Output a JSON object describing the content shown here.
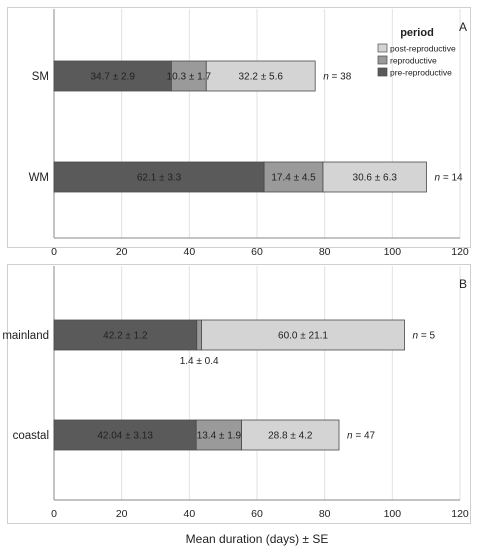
{
  "chart_data": [
    {
      "type": "bar",
      "panel_label": "A",
      "orientation": "horizontal",
      "stacked": true,
      "categories": [
        "SM",
        "WM"
      ],
      "series": [
        {
          "name": "pre-reproductive",
          "color": "#5a5a5a",
          "values": [
            34.7,
            62.1
          ],
          "labels": [
            "34.7 ± 2.9",
            "62.1 ± 3.3"
          ]
        },
        {
          "name": "reproductive",
          "color": "#9a9a9a",
          "values": [
            10.3,
            17.4
          ],
          "labels": [
            "10.3 ± 1.7",
            "17.4 ± 4.5"
          ]
        },
        {
          "name": "post-reproductive",
          "color": "#d4d4d4",
          "values": [
            32.2,
            30.6
          ],
          "labels": [
            "32.2 ± 5.6",
            "30.6 ± 6.3"
          ]
        }
      ],
      "n_labels": [
        "n = 38",
        "n = 14"
      ],
      "xlim": [
        0,
        120
      ],
      "xticks": [
        0,
        20,
        40,
        60,
        80,
        100,
        120
      ],
      "grid": true,
      "legend_title": "period",
      "legend_position": "top-right"
    },
    {
      "type": "bar",
      "panel_label": "B",
      "orientation": "horizontal",
      "stacked": true,
      "categories": [
        "mainland",
        "coastal"
      ],
      "series": [
        {
          "name": "pre-reproductive",
          "color": "#5a5a5a",
          "values": [
            42.2,
            42.04
          ],
          "labels": [
            "42.2 ± 1.2",
            "42.04 ± 3.13"
          ]
        },
        {
          "name": "reproductive",
          "color": "#9a9a9a",
          "values": [
            1.4,
            13.4
          ],
          "labels": [
            "1.4 ± 0.4",
            "13.4 ± 1.9"
          ]
        },
        {
          "name": "post-reproductive",
          "color": "#d4d4d4",
          "values": [
            60.0,
            28.8
          ],
          "labels": [
            "60.0 ± 21.1",
            "28.8 ± 4.2"
          ]
        }
      ],
      "n_labels": [
        "n = 5",
        "n = 47"
      ],
      "xlim": [
        0,
        120
      ],
      "xticks": [
        0,
        20,
        40,
        60,
        80,
        100,
        120
      ],
      "grid": true,
      "xlabel": "Mean duration (days) ± SE"
    }
  ]
}
